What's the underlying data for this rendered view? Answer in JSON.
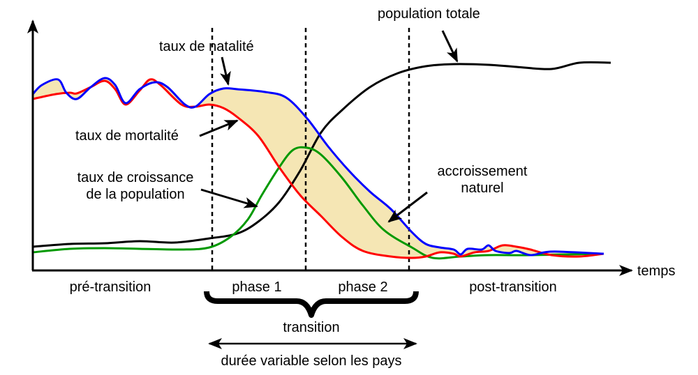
{
  "labels": {
    "birth_rate": "taux de natalité",
    "death_rate": "taux de mortalité",
    "growth_rate_line1": "taux de croissance",
    "growth_rate_line2": "de la population",
    "total_population": "population totale",
    "natural_increase_line1": "accroissement",
    "natural_increase_line2": "naturel",
    "x_axis": "temps"
  },
  "phases": {
    "pre": "pré-transition",
    "phase1": "phase 1",
    "phase2": "phase 2",
    "post": "post-transition",
    "transition": "transition",
    "duration": "durée variable selon les pays"
  },
  "colors": {
    "birth_rate": "#0000ff",
    "death_rate": "#ff0000",
    "growth_rate": "#009900",
    "population": "#000000",
    "natural_increase_fill": "#f5e6b4"
  }
}
